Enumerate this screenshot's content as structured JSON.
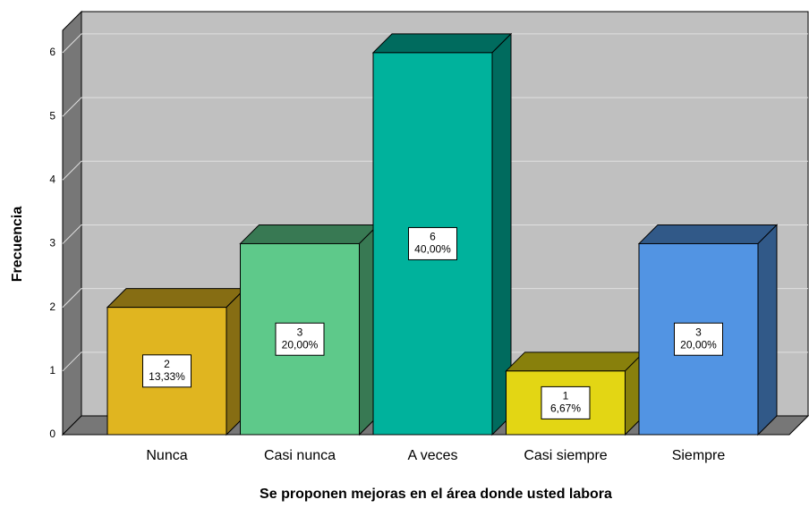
{
  "chart_data": {
    "type": "bar3d",
    "x_label": "Se proponen mejoras en el área donde usted labora",
    "y_label": "Frecuencia",
    "categories": [
      "Nunca",
      "Casi nunca",
      "A veces",
      "Casi siempre",
      "Siempre"
    ],
    "values": [
      2,
      3,
      6,
      1,
      3
    ],
    "percent_labels": [
      "13,33%",
      "20,00%",
      "40,00%",
      "6,67%",
      "20,00%"
    ],
    "colors": [
      "#e0b520",
      "#5ec98a",
      "#00b29c",
      "#e3d614",
      "#5294e3"
    ],
    "ylim": [
      0,
      6.35
    ],
    "yticks": [
      0,
      1,
      2,
      3,
      4,
      5,
      6
    ],
    "grid": true
  }
}
